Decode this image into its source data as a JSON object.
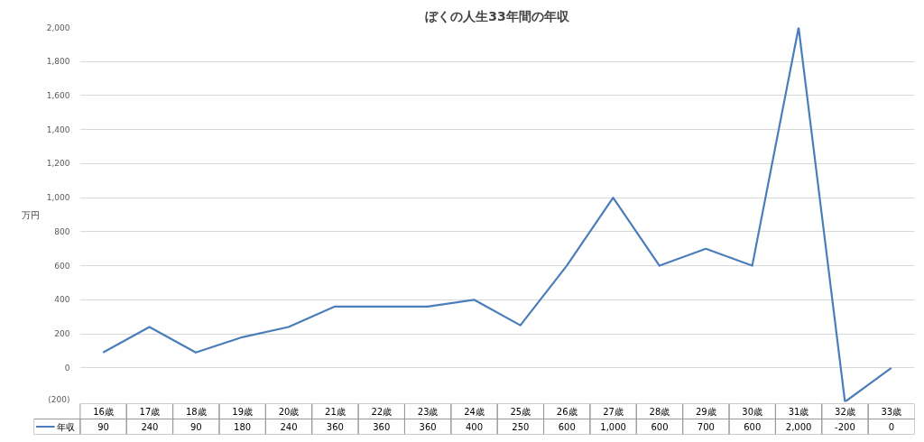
{
  "chart_data": {
    "type": "line",
    "title": "ぼくの人生33年間の年収",
    "ylabel": "万円",
    "categories": [
      "16歳",
      "17歳",
      "18歳",
      "19歳",
      "20歳",
      "21歳",
      "22歳",
      "23歳",
      "24歳",
      "25歳",
      "26歳",
      "27歳",
      "28歳",
      "29歳",
      "30歳",
      "31歳",
      "32歳",
      "33歳"
    ],
    "series": [
      {
        "name": "年収",
        "color": "#4a7ebb",
        "values": [
          90,
          240,
          90,
          180,
          240,
          360,
          360,
          360,
          400,
          250,
          600,
          1000,
          600,
          700,
          600,
          2000,
          -200,
          0
        ],
        "value_labels": [
          "90",
          "240",
          "90",
          "180",
          "240",
          "360",
          "360",
          "360",
          "400",
          "250",
          "600",
          "1,000",
          "600",
          "700",
          "600",
          "2,000",
          "-200",
          "0"
        ]
      }
    ],
    "ylim": [
      -200,
      2000
    ],
    "yticks": [
      {
        "value": -200,
        "label": "(200)"
      },
      0,
      {
        "value": 200,
        "label": "200"
      },
      {
        "value": 400,
        "label": "400"
      },
      {
        "value": 600,
        "label": "600"
      },
      {
        "value": 800,
        "label": "800"
      },
      {
        "value": 1000,
        "label": "1,000"
      },
      {
        "value": 1200,
        "label": "1,200"
      },
      {
        "value": 1400,
        "label": "1,400"
      },
      {
        "value": 1600,
        "label": "1,600"
      },
      {
        "value": 1800,
        "label": "1,800"
      },
      {
        "value": 2000,
        "label": "2,000"
      }
    ],
    "grid": "y",
    "legend": "bottom",
    "marker": "none",
    "line_style": "solid"
  }
}
